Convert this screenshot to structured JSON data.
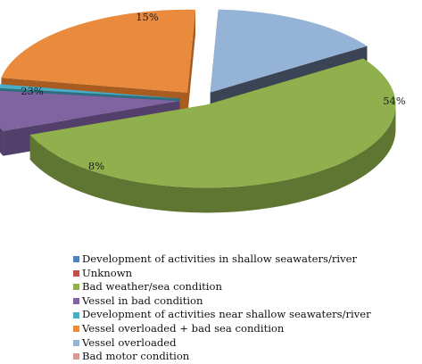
{
  "chart_data": {
    "type": "pie",
    "three_d": true,
    "exploded": true,
    "title": "",
    "legend_position": "bottom",
    "slices": [
      {
        "name": "Development of activities in shallow seawaters/river",
        "value": 0,
        "color": "#4f81bd",
        "side_color": "#2f4d70"
      },
      {
        "name": "Unknown",
        "value": 0,
        "color": "#c0504d",
        "side_color": "#7a2f2d"
      },
      {
        "name": "Bad weather/sea condition",
        "value": 54,
        "label": "54%",
        "color": "#8fb04d",
        "side_color": "#5e7631"
      },
      {
        "name": "Vessel in bad condition",
        "value": 8,
        "label": "8%",
        "color": "#8064a2",
        "side_color": "#523f6a"
      },
      {
        "name": "Development of activities near shallow seawaters/river",
        "value": 0.8,
        "color": "#4bacc6",
        "side_color": "#2d6f80"
      },
      {
        "name": "Vessel overloaded + bad sea condition",
        "value": 23,
        "label": "23%",
        "color": "#e98a3c",
        "side_color": "#a85c20"
      },
      {
        "name": "Vessel overloaded",
        "value": 15,
        "label": "15%",
        "color": "#95b3d7",
        "side_color": "#3a4455"
      },
      {
        "name": "Bad motor condition",
        "value": 0,
        "color": "#d99795",
        "side_color": "#9c5e5c"
      }
    ]
  }
}
